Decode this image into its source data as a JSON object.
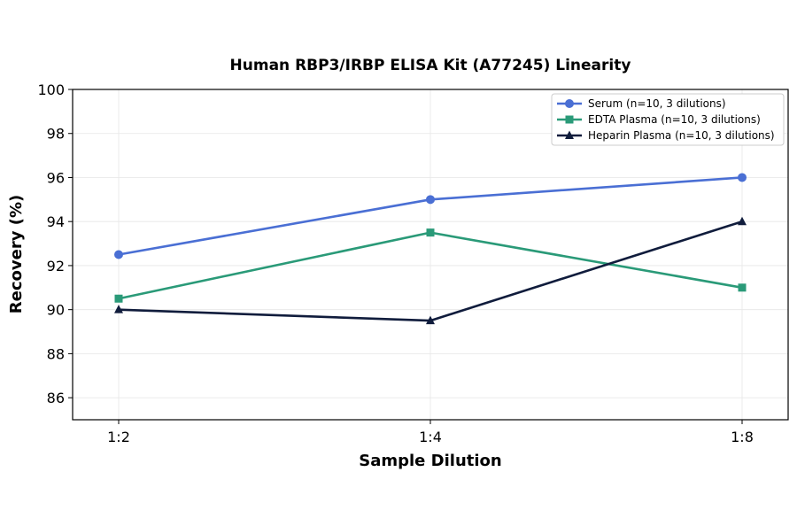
{
  "chart_data": {
    "type": "line",
    "title": "Human RBP3/IRBP ELISA Kit (A77245) Linearity",
    "xlabel": "Sample Dilution",
    "ylabel": "Recovery (%)",
    "categories": [
      "1:2",
      "1:4",
      "1:8"
    ],
    "ylim": [
      85,
      100
    ],
    "yticks": [
      86,
      88,
      90,
      92,
      94,
      96,
      98,
      100
    ],
    "grid": true,
    "legend_position": "top-right",
    "series": [
      {
        "name": "Serum (n=10, 3 dilutions)",
        "values": [
          92.5,
          95.0,
          96.0
        ],
        "color": "#4a6fd4",
        "marker": "circle"
      },
      {
        "name": "EDTA Plasma (n=10, 3 dilutions)",
        "values": [
          90.5,
          93.5,
          91.0
        ],
        "color": "#2a9a78",
        "marker": "square"
      },
      {
        "name": "Heparin Plasma (n=10, 3 dilutions)",
        "values": [
          90.0,
          89.5,
          94.0
        ],
        "color": "#101c3c",
        "marker": "triangle"
      }
    ]
  }
}
